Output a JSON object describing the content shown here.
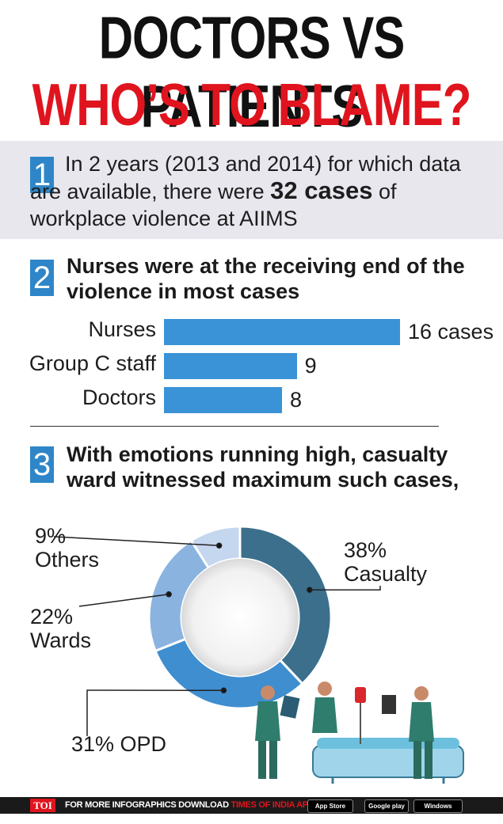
{
  "header": {
    "title_line1": "DOCTORS VS PATIENTS",
    "title_line2": "WHO’S TO BLAME?"
  },
  "section1": {
    "number": "1",
    "text_before": "In 2 years (2013 and 2014) for which data are available, there were ",
    "text_bold": "32 cases",
    "text_after": " of workplace violence at AIIMS"
  },
  "section2": {
    "number": "2",
    "heading": "Nurses were at the receiving end of the violence in most cases"
  },
  "section3": {
    "number": "3",
    "heading": "With emotions running high, casualty ward witnessed maximum such cases,"
  },
  "chart_data": [
    {
      "type": "bar",
      "orientation": "horizontal",
      "categories": [
        "Nurses",
        "Group C staff",
        "Doctors"
      ],
      "values": [
        16,
        9,
        8
      ],
      "value_labels": [
        "16 cases",
        "9",
        "8"
      ],
      "colors": [
        "#3a93d6"
      ]
    },
    {
      "type": "pie",
      "style": "donut",
      "slices": [
        {
          "label": "Casualty",
          "value": 38,
          "display": [
            "38%",
            "Casualty"
          ],
          "color": "#3b6f8c"
        },
        {
          "label": "OPD",
          "value": 31,
          "display": [
            "31% OPD"
          ],
          "color": "#3f8ed0"
        },
        {
          "label": "Wards",
          "value": 22,
          "display": [
            "22%",
            "Wards"
          ],
          "color": "#8ab3e0"
        },
        {
          "label": "Others",
          "value": 9,
          "display": [
            "9%",
            "Others"
          ],
          "color": "#c5d6ef"
        }
      ]
    }
  ],
  "footer": {
    "logo": "TOI",
    "text": "FOR MORE INFOGRAPHICS DOWNLOAD ",
    "app": "TIMES OF INDIA APP",
    "store1": "App Store",
    "store2": "Google play",
    "store3": "Windows Phone"
  }
}
